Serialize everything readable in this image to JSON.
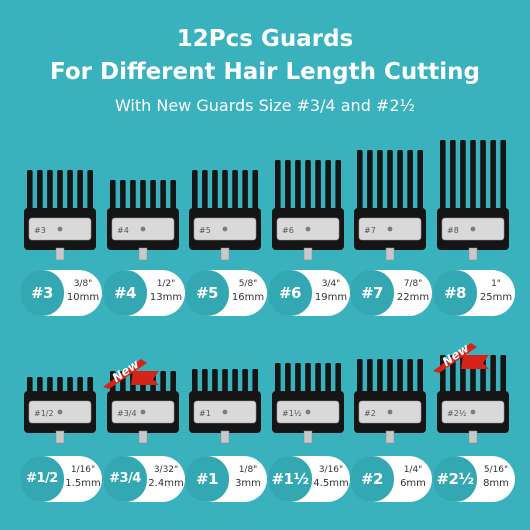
{
  "header": {
    "title_line1": "12Pcs Guards",
    "title_line2": "For Different Hair Length Cutting",
    "subtitle": "With New Guards Size #3/4 and #2½"
  },
  "colors": {
    "background": "#3ab2bd",
    "number_badge": "#34a8b2",
    "new_ribbon": "#d62418",
    "comb": "#151515"
  },
  "guards": [
    {
      "num": "#3",
      "inch": "3/8\"",
      "mm": "10mm",
      "plate": "#3",
      "new": false
    },
    {
      "num": "#4",
      "inch": "1/2\"",
      "mm": "13mm",
      "plate": "#4",
      "new": false
    },
    {
      "num": "#5",
      "inch": "5/8\"",
      "mm": "16mm",
      "plate": "#5",
      "new": false
    },
    {
      "num": "#6",
      "inch": "3/4\"",
      "mm": "19mm",
      "plate": "#6",
      "new": false
    },
    {
      "num": "#7",
      "inch": "7/8\"",
      "mm": "22mm",
      "plate": "#7",
      "new": false
    },
    {
      "num": "#8",
      "inch": "1\"",
      "mm": "25mm",
      "plate": "#8",
      "new": false
    },
    {
      "num": "#1/2",
      "inch": "1/16\"",
      "mm": "1.5mm",
      "plate": "#1/2",
      "new": false
    },
    {
      "num": "#3/4",
      "inch": "3/32\"",
      "mm": "2.4mm",
      "plate": "#3/4",
      "new": true
    },
    {
      "num": "#1",
      "inch": "1/8\"",
      "mm": "3mm",
      "plate": "#1",
      "new": false
    },
    {
      "num": "#1½",
      "inch": "3/16\"",
      "mm": "4.5mm",
      "plate": "#1½",
      "new": false
    },
    {
      "num": "#2",
      "inch": "1/4\"",
      "mm": "6mm",
      "plate": "#2",
      "new": false
    },
    {
      "num": "#2½",
      "inch": "5/16\"",
      "mm": "8mm",
      "plate": "#2½",
      "new": true
    }
  ],
  "new_label": "New"
}
